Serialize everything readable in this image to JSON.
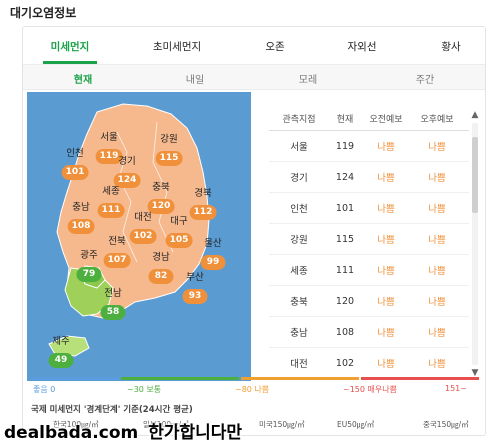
{
  "page_title": "대기오염정보",
  "main_tabs": [
    "미세먼지",
    "초미세먼지",
    "오존",
    "자외선",
    "황사"
  ],
  "sub_tabs": [
    "현재",
    "내일",
    "모레",
    "주간"
  ],
  "regions": [
    {
      "name": "서울",
      "value": "119",
      "level": "orange"
    },
    {
      "name": "강원",
      "value": "115",
      "level": "orange"
    },
    {
      "name": "인천",
      "value": "101",
      "level": "orange"
    },
    {
      "name": "경기",
      "value": "124",
      "level": "orange"
    },
    {
      "name": "세종",
      "value": "111",
      "level": "orange"
    },
    {
      "name": "충북",
      "value": "120",
      "level": "orange"
    },
    {
      "name": "경북",
      "value": "112",
      "level": "orange"
    },
    {
      "name": "충남",
      "value": "108",
      "level": "orange"
    },
    {
      "name": "대전",
      "value": "102",
      "level": "orange"
    },
    {
      "name": "대구",
      "value": "105",
      "level": "orange"
    },
    {
      "name": "전북",
      "value": "107",
      "level": "orange"
    },
    {
      "name": "울산",
      "value": "99",
      "level": "orange"
    },
    {
      "name": "광주",
      "value": "79",
      "level": "green"
    },
    {
      "name": "경남",
      "value": "82",
      "level": "orange"
    },
    {
      "name": "부산",
      "value": "93",
      "level": "orange"
    },
    {
      "name": "전남",
      "value": "58",
      "level": "green"
    },
    {
      "name": "제주",
      "value": "49",
      "level": "green"
    }
  ],
  "table": {
    "headers": [
      "관측지점",
      "현재",
      "오전예보",
      "오후예보"
    ],
    "rows": [
      [
        "서울",
        "119",
        "나쁨",
        "나쁨"
      ],
      [
        "경기",
        "124",
        "나쁨",
        "나쁨"
      ],
      [
        "인천",
        "101",
        "나쁨",
        "나쁨"
      ],
      [
        "강원",
        "115",
        "나쁨",
        "나쁨"
      ],
      [
        "세종",
        "111",
        "나쁨",
        "나쁨"
      ],
      [
        "충북",
        "120",
        "나쁨",
        "나쁨"
      ],
      [
        "충남",
        "108",
        "나쁨",
        "나쁨"
      ],
      [
        "대전",
        "102",
        "나쁨",
        "나쁨"
      ]
    ]
  },
  "scrollbar": {
    "up": "▲",
    "down": "▼"
  },
  "legend": [
    {
      "label": "좋음 0",
      "color": "#5b9be0"
    },
    {
      "label": "~30 보통",
      "color": "#4caf3e"
    },
    {
      "label": "~80 나쁨",
      "color": "#f0a030"
    },
    {
      "label": "~150 매우나쁨",
      "color": "#e84f4f"
    },
    {
      "label": "151~",
      "color": "#e84f4f"
    }
  ],
  "footnote": "국제 미세먼지 '경계단계' 기준(24시간 평균)",
  "standards": [
    "한국100㎍/㎥",
    "일본100㎍/㎥",
    "미국150㎍/㎥",
    "EU50㎍/㎥",
    "중국150㎍/㎥"
  ],
  "watermark": {
    "site": "dealbada.com",
    "text": "한가합니다만"
  }
}
